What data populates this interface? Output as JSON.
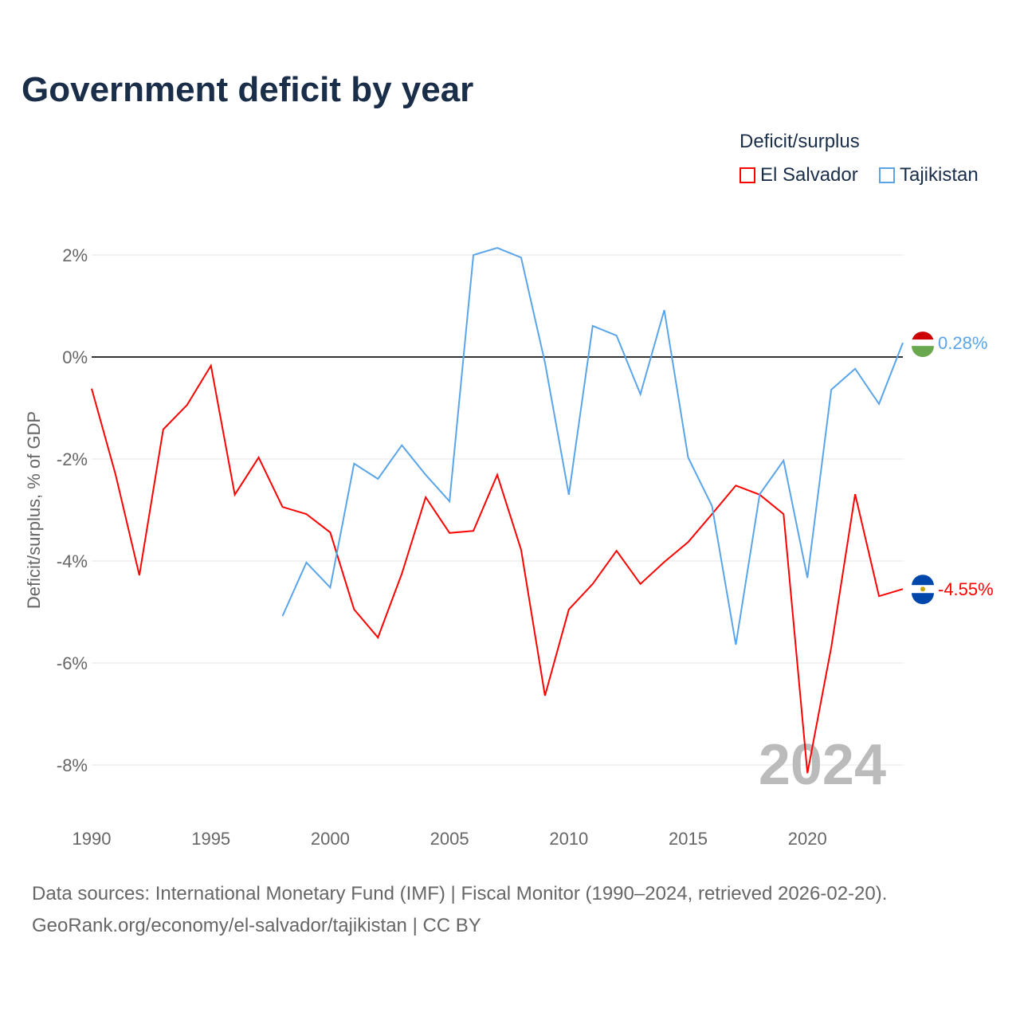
{
  "title": "Government deficit by year",
  "legend": {
    "title": "Deficit/surplus",
    "items": [
      {
        "label": "El Salvador",
        "color": "#ff0000"
      },
      {
        "label": "Tajikistan",
        "color": "#5aa5ea"
      }
    ]
  },
  "footer": {
    "line1": "Data sources: International Monetary Fund (IMF) | Fiscal Monitor (1990–2024, retrieved 2026-02-20).",
    "line2": "GeoRank.org/economy/el-salvador/tajikistan | CC BY"
  },
  "chart_data": {
    "type": "line",
    "title": "Government deficit by year",
    "ylabel": "Deficit/surplus, % of GDP",
    "xlabel": "",
    "xlim": [
      1990,
      2024
    ],
    "ylim": [
      -9,
      2.6
    ],
    "xticks": [
      1990,
      1995,
      2000,
      2005,
      2010,
      2015,
      2020
    ],
    "yticks": [
      2,
      0,
      -2,
      -4,
      -6,
      -8
    ],
    "ytick_labels": [
      "2%",
      "0%",
      "-2%",
      "-4%",
      "-6%",
      "-8%"
    ],
    "year_watermark": "2024",
    "series": [
      {
        "name": "El Salvador",
        "color": "#ff0000",
        "end_label": "-4.55%",
        "x": [
          1990,
          1991,
          1992,
          1993,
          1994,
          1995,
          1996,
          1997,
          1998,
          1999,
          2000,
          2001,
          2002,
          2003,
          2004,
          2005,
          2006,
          2007,
          2008,
          2009,
          2010,
          2011,
          2012,
          2013,
          2014,
          2015,
          2016,
          2017,
          2018,
          2019,
          2020,
          2021,
          2022,
          2023,
          2024
        ],
        "values": [
          -0.62,
          -2.3,
          -4.28,
          -1.42,
          -0.94,
          -0.17,
          -2.7,
          -1.97,
          -2.94,
          -3.08,
          -3.44,
          -4.95,
          -5.5,
          -4.25,
          -2.75,
          -3.45,
          -3.41,
          -2.31,
          -3.78,
          -6.64,
          -4.95,
          -4.45,
          -3.8,
          -4.45,
          -4.02,
          -3.63,
          -3.08,
          -2.52,
          -2.7,
          -3.08,
          -8.16,
          -5.69,
          -2.69,
          -4.69,
          -4.55
        ]
      },
      {
        "name": "Tajikistan",
        "color": "#5aa5ea",
        "end_label": "0.28%",
        "x": [
          1998,
          1999,
          2000,
          2001,
          2002,
          2003,
          2004,
          2005,
          2006,
          2007,
          2008,
          2009,
          2010,
          2011,
          2012,
          2013,
          2014,
          2015,
          2016,
          2017,
          2018,
          2019,
          2020,
          2021,
          2022,
          2023,
          2024
        ],
        "values": [
          -5.08,
          -4.03,
          -4.52,
          -2.09,
          -2.39,
          -1.73,
          -2.31,
          -2.83,
          2.0,
          2.14,
          1.95,
          -0.11,
          -2.7,
          0.61,
          0.42,
          -0.73,
          0.92,
          -1.97,
          -2.92,
          -5.64,
          -2.69,
          -2.03,
          -4.33,
          -0.64,
          -0.23,
          -0.92,
          0.28
        ]
      }
    ]
  }
}
